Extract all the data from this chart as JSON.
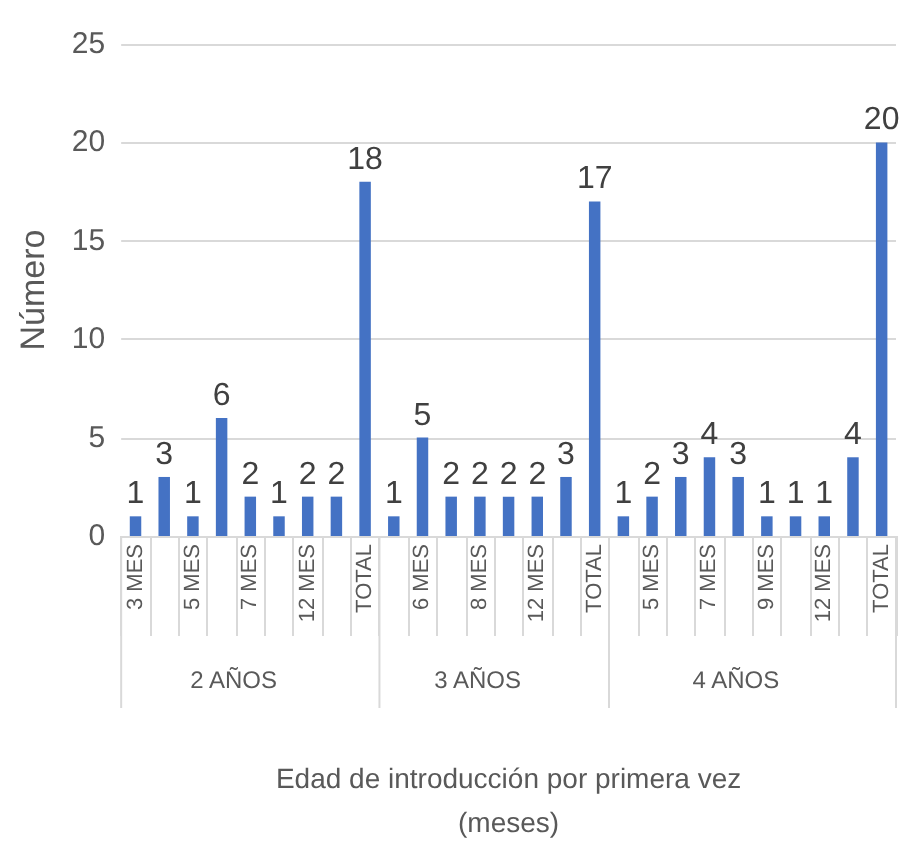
{
  "chart_data": {
    "type": "bar",
    "xlabel": "Edad de introducción por primera vez\n(meses)",
    "ylabel": "Número",
    "categories": [
      "3 MES",
      null,
      "5 MES",
      null,
      "7 MES",
      null,
      "12 MES",
      null,
      "TOTAL",
      null,
      "6 MES",
      null,
      "8 MES",
      null,
      "12 MES",
      null,
      "TOTAL",
      null,
      "5 MES",
      null,
      "7 MES",
      null,
      "9 MES",
      null,
      "12 MES",
      null,
      "TOTAL"
    ],
    "values": [
      1,
      3,
      1,
      6,
      2,
      1,
      2,
      2,
      18,
      1,
      5,
      2,
      2,
      2,
      2,
      3,
      17,
      1,
      2,
      3,
      4,
      3,
      1,
      1,
      1,
      4,
      20
    ],
    "color": "#4472c4",
    "annotations": [
      "2 AÑOS",
      "3 AÑOS",
      "4 AÑOS"
    ],
    "ylim": [
      0,
      25
    ],
    "yticks": [
      0,
      5,
      10,
      15,
      20,
      25
    ],
    "grid": "y",
    "data_labels": true
  }
}
